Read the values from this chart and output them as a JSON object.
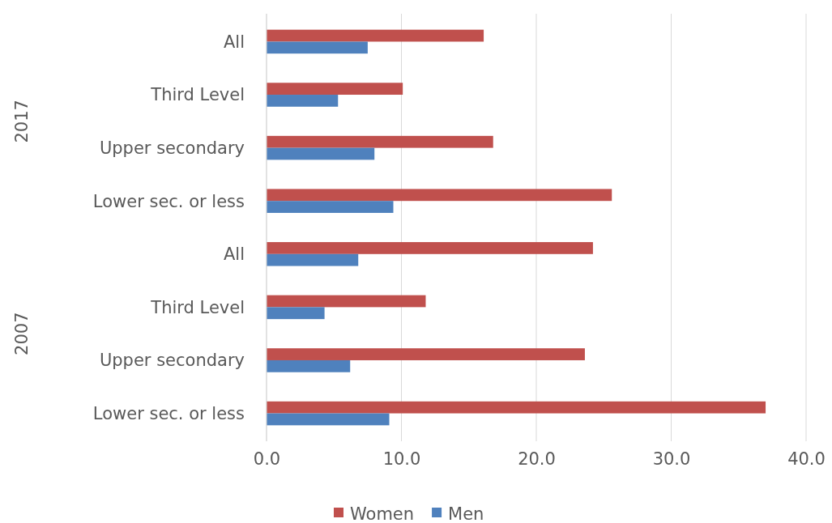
{
  "chart_data": {
    "type": "bar",
    "orientation": "horizontal",
    "categories": [
      "All",
      "Third Level",
      "Upper secondary",
      "Lower sec. or less",
      "All",
      "Third Level",
      "Upper secondary",
      "Lower sec. or less"
    ],
    "series": [
      {
        "name": "Women",
        "color": "#c0504d",
        "values": [
          16.1,
          10.1,
          16.8,
          25.6,
          24.2,
          11.8,
          23.6,
          37.0
        ]
      },
      {
        "name": "Men",
        "color": "#4f81bd",
        "values": [
          7.5,
          5.3,
          8.0,
          9.4,
          6.8,
          4.3,
          6.2,
          9.1
        ]
      }
    ],
    "xlim": [
      0,
      40
    ],
    "xticks": [
      {
        "value": 0,
        "label": "0.0"
      },
      {
        "value": 10,
        "label": "10.0"
      },
      {
        "value": 20,
        "label": "20.0"
      },
      {
        "value": 30,
        "label": "30.0"
      },
      {
        "value": 40,
        "label": "40.0"
      }
    ],
    "grid": "x",
    "legend": "bottom",
    "annotations": [
      "2017",
      "2007"
    ]
  }
}
